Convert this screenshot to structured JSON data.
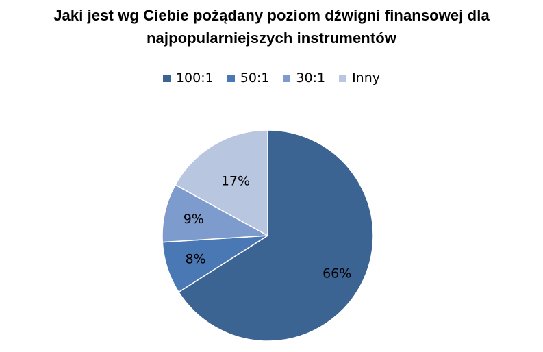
{
  "chart_data": {
    "type": "pie",
    "title_lines": [
      "Jaki jest wg Ciebie pożądany poziom dźwigni finansowej dla",
      "najpopularniejszych instrumentów"
    ],
    "categories": [
      "100:1",
      "50:1",
      "30:1",
      "Inny"
    ],
    "values": [
      66,
      8,
      9,
      17
    ],
    "value_labels": [
      "66%",
      "8%",
      "9%",
      "17%"
    ],
    "colors": [
      "#3c6493",
      "#4a78b4",
      "#7d9bcc",
      "#b8c6e0"
    ],
    "legend_position": "top",
    "start_angle": "12 o'clock",
    "direction": "clockwise"
  }
}
